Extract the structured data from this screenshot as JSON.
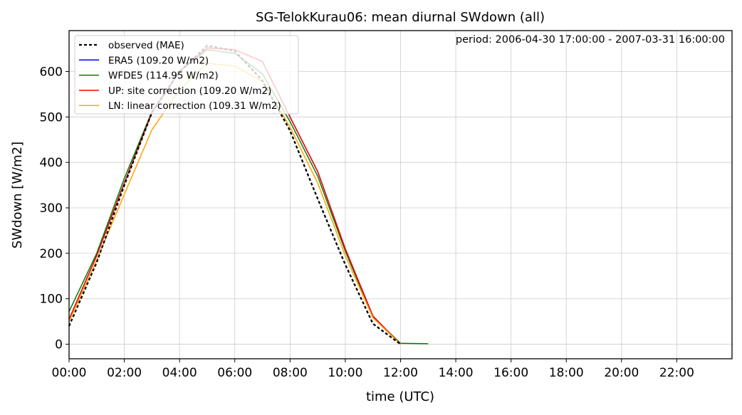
{
  "chart_data": {
    "type": "line",
    "title": "SG-TelokKurau06: mean diurnal SWdown (all)",
    "annotation": "period: 2006-04-30 17:00:00 - 2007-03-31 16:00:00",
    "xlabel": "time (UTC)",
    "ylabel": "SWdown [W/m2]",
    "xlim": [
      0,
      24
    ],
    "ylim": [
      -32,
      690
    ],
    "x_ticks": [
      0,
      2,
      4,
      6,
      8,
      10,
      12,
      14,
      16,
      18,
      20,
      22
    ],
    "x_tick_labels": [
      "00:00",
      "02:00",
      "04:00",
      "06:00",
      "08:00",
      "10:00",
      "12:00",
      "14:00",
      "16:00",
      "18:00",
      "20:00",
      "22:00"
    ],
    "y_ticks": [
      0,
      100,
      200,
      300,
      400,
      500,
      600
    ],
    "y_tick_labels": [
      "0",
      "100",
      "200",
      "300",
      "400",
      "500",
      "600"
    ],
    "grid": true,
    "legend_position": "top-left",
    "series": [
      {
        "name": "observed (MAE)",
        "color": "#000000",
        "dashed": true,
        "x": [
          0,
          1,
          2,
          3,
          4,
          5,
          6,
          7,
          8,
          9,
          10,
          11,
          12
        ],
        "values": [
          40,
          180,
          350,
          510,
          600,
          657,
          645,
          580,
          470,
          320,
          175,
          45,
          0
        ]
      },
      {
        "name": "ERA5 (109.20 W/m2)",
        "color": "#0000ff",
        "dashed": false,
        "x": [
          0,
          1,
          2,
          3,
          4,
          5,
          6,
          7,
          8,
          9,
          10,
          11,
          12
        ],
        "values": [
          55,
          195,
          355,
          510,
          600,
          652,
          648,
          622,
          500,
          380,
          210,
          62,
          0
        ]
      },
      {
        "name": "WFDE5 (114.95 W/m2)",
        "color": "#008000",
        "dashed": false,
        "x": [
          0,
          1,
          2,
          3,
          4,
          5,
          6,
          7,
          8,
          9,
          10,
          11,
          12,
          13
        ],
        "values": [
          72,
          200,
          365,
          512,
          600,
          648,
          640,
          595,
          490,
          370,
          205,
          60,
          2,
          1
        ]
      },
      {
        "name": "UP: site correction (109.20 W/m2)",
        "color": "#ff0000",
        "dashed": false,
        "x": [
          0,
          1,
          2,
          3,
          4,
          5,
          6,
          7,
          8,
          9,
          10,
          11,
          12
        ],
        "values": [
          55,
          195,
          355,
          510,
          600,
          652,
          648,
          622,
          500,
          380,
          210,
          62,
          0
        ]
      },
      {
        "name": "LN: linear correction (109.31 W/m2)",
        "color": "#ffa500",
        "dashed": false,
        "x": [
          0,
          1,
          2,
          3,
          4,
          5,
          6,
          7,
          8,
          9,
          10,
          11,
          12
        ],
        "values": [
          50,
          185,
          330,
          472,
          560,
          618,
          612,
          578,
          478,
          355,
          195,
          58,
          0
        ]
      }
    ]
  }
}
